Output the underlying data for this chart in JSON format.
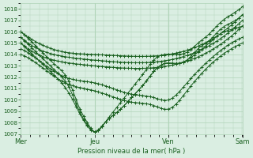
{
  "xlabel": "Pression niveau de la mer( hPa )",
  "bg_color": "#daeee2",
  "grid_color": "#b0d4b8",
  "line_color": "#1a6020",
  "tick_color": "#1a6020",
  "spine_color": "#b0d4b8",
  "ylim": [
    1007,
    1018.5
  ],
  "yticks": [
    1007,
    1008,
    1009,
    1010,
    1011,
    1012,
    1013,
    1014,
    1015,
    1016,
    1017,
    1018
  ],
  "xtick_labels": [
    "Mer",
    "Jeu",
    "Ven",
    "Sam"
  ],
  "xtick_positions": [
    0,
    0.333,
    0.667,
    1.0
  ],
  "curves": [
    {
      "points_x": [
        0.0,
        0.08,
        0.16,
        0.22,
        0.26,
        0.3,
        0.333,
        0.38,
        0.44,
        0.5,
        0.56,
        0.6,
        0.65,
        0.7,
        0.75,
        0.8,
        0.85,
        0.9,
        0.95,
        1.0
      ],
      "points_y": [
        1016.0,
        1014.5,
        1013.0,
        1011.5,
        1009.5,
        1008.0,
        1007.2,
        1008.0,
        1009.5,
        1011.0,
        1012.5,
        1013.5,
        1014.0,
        1014.0,
        1014.2,
        1015.0,
        1015.8,
        1016.8,
        1017.5,
        1018.2
      ]
    },
    {
      "points_x": [
        0.0,
        0.08,
        0.16,
        0.22,
        0.26,
        0.3,
        0.333,
        0.38,
        0.44,
        0.5,
        0.56,
        0.6,
        0.65,
        0.7,
        0.75,
        0.8,
        0.85,
        0.9,
        0.95,
        1.0
      ],
      "points_y": [
        1015.5,
        1014.0,
        1012.5,
        1011.0,
        1009.2,
        1007.8,
        1007.2,
        1008.0,
        1009.0,
        1010.2,
        1011.5,
        1012.5,
        1013.2,
        1013.2,
        1013.5,
        1014.5,
        1015.2,
        1016.2,
        1016.8,
        1017.5
      ]
    },
    {
      "points_x": [
        0.0,
        0.08,
        0.16,
        0.22,
        0.26,
        0.3,
        0.333,
        0.38,
        0.44,
        0.5,
        0.56,
        0.6,
        0.65,
        0.7,
        0.75,
        0.8,
        0.85,
        0.9,
        0.95,
        1.0
      ],
      "points_y": [
        1015.0,
        1013.5,
        1012.0,
        1010.5,
        1009.0,
        1007.7,
        1007.2,
        1008.0,
        1009.0,
        1010.2,
        1011.5,
        1012.5,
        1013.2,
        1013.2,
        1013.5,
        1014.2,
        1015.0,
        1015.8,
        1016.2,
        1016.5
      ]
    },
    {
      "points_x": [
        0.0,
        0.1,
        0.2,
        0.333,
        0.667,
        1.0
      ],
      "points_y": [
        1016.0,
        1014.8,
        1014.2,
        1014.0,
        1014.0,
        1017.5
      ]
    },
    {
      "points_x": [
        0.0,
        0.1,
        0.2,
        0.333,
        0.667,
        1.0
      ],
      "points_y": [
        1015.5,
        1014.3,
        1013.8,
        1013.5,
        1013.5,
        1017.0
      ]
    },
    {
      "points_x": [
        0.0,
        0.1,
        0.2,
        0.333,
        0.667,
        1.0
      ],
      "points_y": [
        1015.0,
        1013.8,
        1013.3,
        1013.0,
        1013.0,
        1016.5
      ]
    },
    {
      "points_x": [
        0.0,
        0.1,
        0.2,
        0.333,
        0.5,
        0.6,
        0.667,
        0.75,
        0.85,
        0.95,
        1.0
      ],
      "points_y": [
        1014.5,
        1013.2,
        1012.0,
        1011.5,
        1010.5,
        1010.2,
        1010.0,
        1011.5,
        1013.5,
        1015.0,
        1015.5
      ]
    },
    {
      "points_x": [
        0.0,
        0.1,
        0.2,
        0.333,
        0.5,
        0.6,
        0.667,
        0.75,
        0.85,
        0.95,
        1.0
      ],
      "points_y": [
        1014.0,
        1012.8,
        1011.5,
        1010.8,
        1009.8,
        1009.5,
        1009.2,
        1010.8,
        1013.0,
        1014.5,
        1015.0
      ]
    }
  ]
}
